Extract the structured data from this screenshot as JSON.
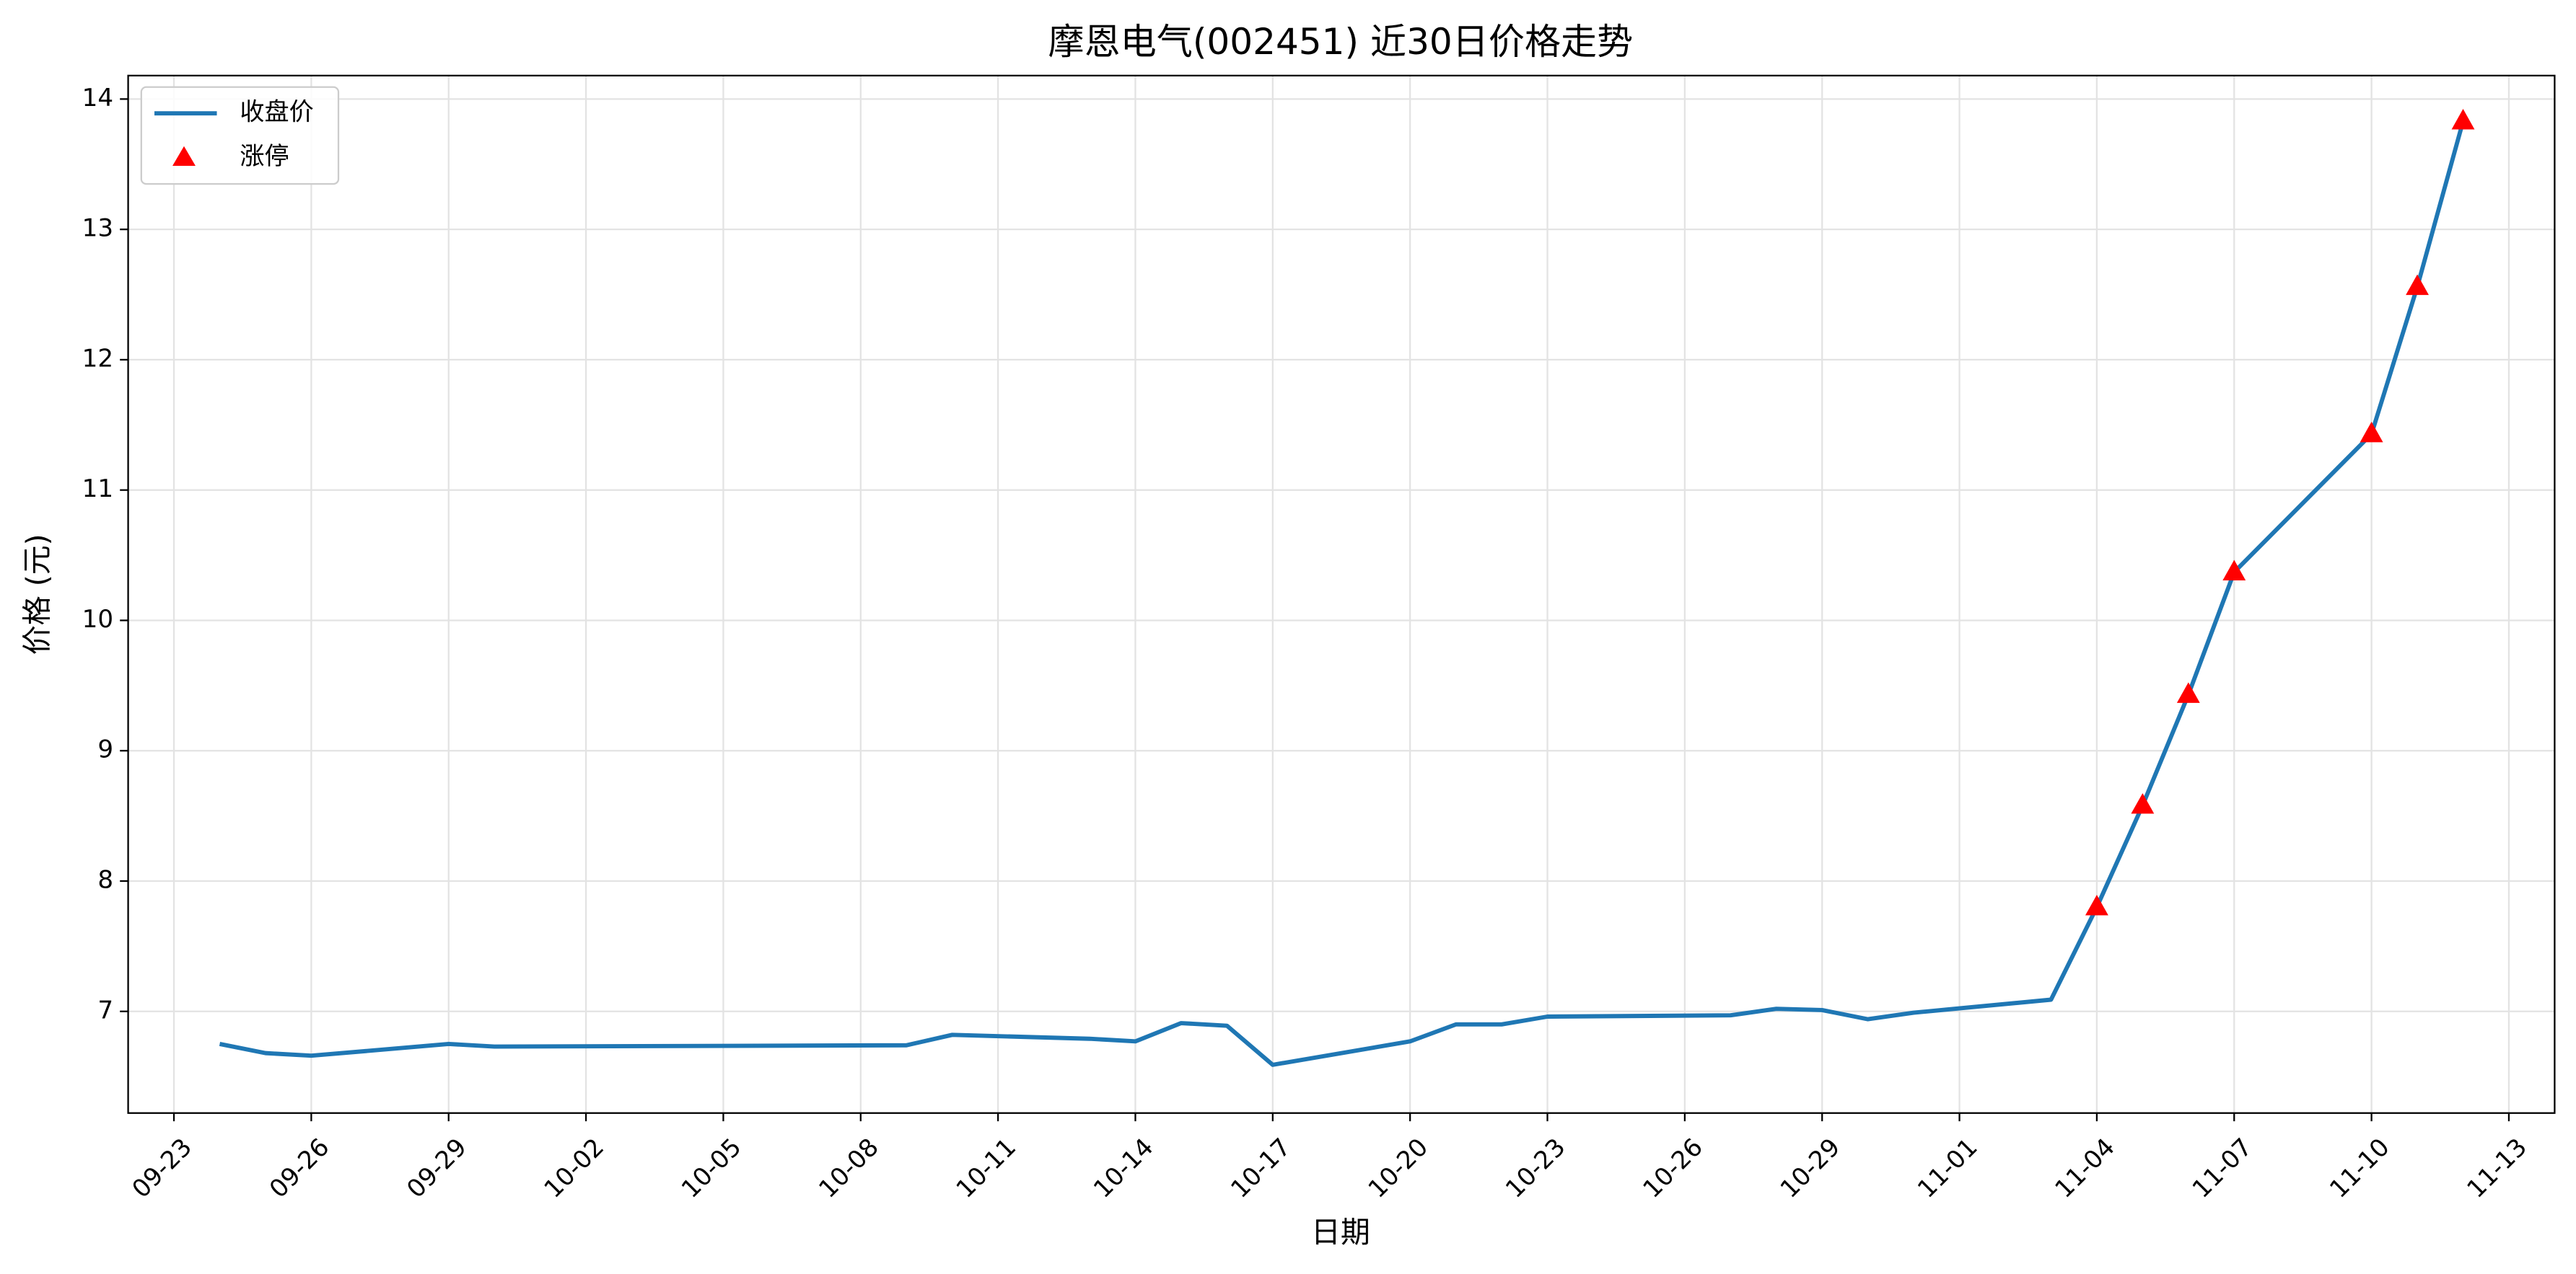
{
  "chart_data": {
    "type": "line",
    "title": "摩恩电气(002451) 近30日价格走势",
    "x_label": "日期",
    "y_label": "价格 (元)",
    "series": [
      {
        "name": "收盘价",
        "color": "#1f77b4",
        "x": [
          "09-24",
          "09-25",
          "09-26",
          "09-29",
          "09-30",
          "10-09",
          "10-10",
          "10-13",
          "10-14",
          "10-15",
          "10-16",
          "10-17",
          "10-20",
          "10-21",
          "10-22",
          "10-23",
          "10-27",
          "10-28",
          "10-29",
          "10-30",
          "10-31",
          "11-03",
          "11-04",
          "11-05",
          "11-06",
          "11-07",
          "11-10",
          "11-11",
          "11-12"
        ],
        "values": [
          6.75,
          6.68,
          6.66,
          6.75,
          6.73,
          6.74,
          6.82,
          6.79,
          6.77,
          6.91,
          6.89,
          6.59,
          6.77,
          6.9,
          6.9,
          6.96,
          6.97,
          7.02,
          7.01,
          6.94,
          6.99,
          7.09,
          7.8,
          8.58,
          9.43,
          10.37,
          11.43,
          12.56,
          13.83
        ]
      },
      {
        "name": "涨停",
        "color": "#ff0000",
        "marker": "triangle",
        "x": [
          "11-04",
          "11-05",
          "11-06",
          "11-07",
          "11-10",
          "11-11",
          "11-12"
        ],
        "values": [
          7.8,
          8.58,
          9.43,
          10.37,
          11.43,
          12.56,
          13.83
        ]
      }
    ],
    "xlim": [
      "09-22",
      "11-14"
    ],
    "xticks": [
      "09-23",
      "09-26",
      "09-29",
      "10-02",
      "10-05",
      "10-08",
      "10-11",
      "10-14",
      "10-17",
      "10-20",
      "10-23",
      "10-26",
      "10-29",
      "11-01",
      "11-04",
      "11-07",
      "11-10",
      "11-13"
    ],
    "ylim": [
      6.22,
      14.18
    ],
    "yticks": [
      7,
      8,
      9,
      10,
      11,
      12,
      13,
      14
    ],
    "grid": true,
    "legend": "upper-left"
  }
}
